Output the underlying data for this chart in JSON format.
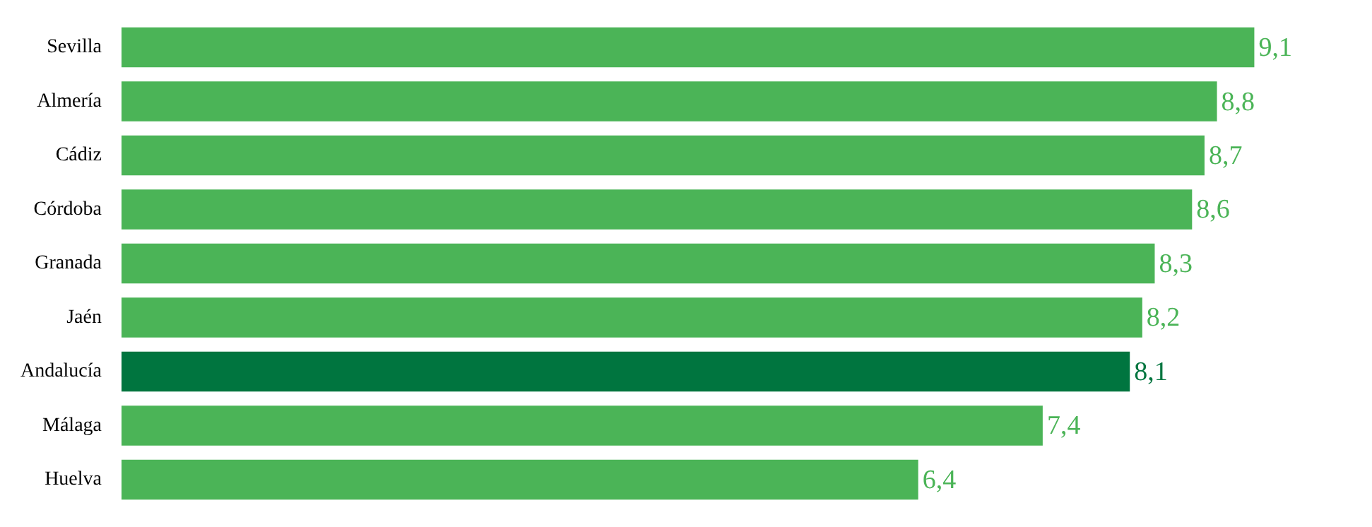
{
  "chart_data": {
    "type": "bar",
    "orientation": "horizontal",
    "categories": [
      "Sevilla",
      "Almería",
      "Cádiz",
      "Córdoba",
      "Granada",
      "Jaén",
      "Andalucía",
      "Málaga",
      "Huelva"
    ],
    "values": [
      9.1,
      8.8,
      8.7,
      8.6,
      8.3,
      8.2,
      8.1,
      7.4,
      6.4
    ],
    "colors": [
      "#4bb457",
      "#4bb457",
      "#4bb457",
      "#4bb457",
      "#4bb457",
      "#4bb457",
      "#00753f",
      "#4bb457",
      "#4bb457"
    ],
    "value_labels": [
      "9,1",
      "8,8",
      "8,7",
      "8,6",
      "8,3",
      "8,2",
      "8,1",
      "7,4",
      "6,4"
    ],
    "legend": false
  }
}
